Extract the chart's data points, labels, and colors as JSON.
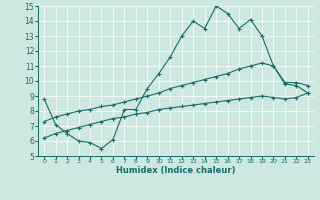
{
  "xlabel": "Humidex (Indice chaleur)",
  "xlim": [
    -0.5,
    23.5
  ],
  "ylim": [
    5,
    15
  ],
  "xticks": [
    0,
    1,
    2,
    3,
    4,
    5,
    6,
    7,
    8,
    9,
    10,
    11,
    12,
    13,
    14,
    15,
    16,
    17,
    18,
    19,
    20,
    21,
    22,
    23
  ],
  "yticks": [
    5,
    6,
    7,
    8,
    9,
    10,
    11,
    12,
    13,
    14,
    15
  ],
  "bg_color": "#cce8e0",
  "grid_color": "#ffffff",
  "line_color": "#1a6b6b",
  "line1_x": [
    0,
    1,
    2,
    3,
    4,
    5,
    6,
    7,
    8,
    9,
    10,
    11,
    12,
    13,
    14,
    15,
    16,
    17,
    18,
    19,
    20,
    21,
    22,
    23
  ],
  "line1_y": [
    8.8,
    7.1,
    6.5,
    6.0,
    5.9,
    5.5,
    6.1,
    8.1,
    8.1,
    9.5,
    10.5,
    11.6,
    13.0,
    14.0,
    13.5,
    15.0,
    14.5,
    13.5,
    14.1,
    13.0,
    11.0,
    9.8,
    9.7,
    9.2
  ],
  "line2_x": [
    0,
    1,
    2,
    3,
    4,
    5,
    6,
    7,
    8,
    9,
    10,
    11,
    12,
    13,
    14,
    15,
    16,
    17,
    18,
    19,
    20,
    21,
    22,
    23
  ],
  "line2_y": [
    7.3,
    7.6,
    7.8,
    8.0,
    8.1,
    8.3,
    8.4,
    8.6,
    8.8,
    9.0,
    9.2,
    9.5,
    9.7,
    9.9,
    10.1,
    10.3,
    10.5,
    10.8,
    11.0,
    11.2,
    11.0,
    9.9,
    9.9,
    9.7
  ],
  "line3_x": [
    0,
    1,
    2,
    3,
    4,
    5,
    6,
    7,
    8,
    9,
    10,
    11,
    12,
    13,
    14,
    15,
    16,
    17,
    18,
    19,
    20,
    21,
    22,
    23
  ],
  "line3_y": [
    6.2,
    6.5,
    6.7,
    6.9,
    7.1,
    7.3,
    7.5,
    7.6,
    7.8,
    7.9,
    8.1,
    8.2,
    8.3,
    8.4,
    8.5,
    8.6,
    8.7,
    8.8,
    8.9,
    9.0,
    8.9,
    8.8,
    8.9,
    9.2
  ]
}
